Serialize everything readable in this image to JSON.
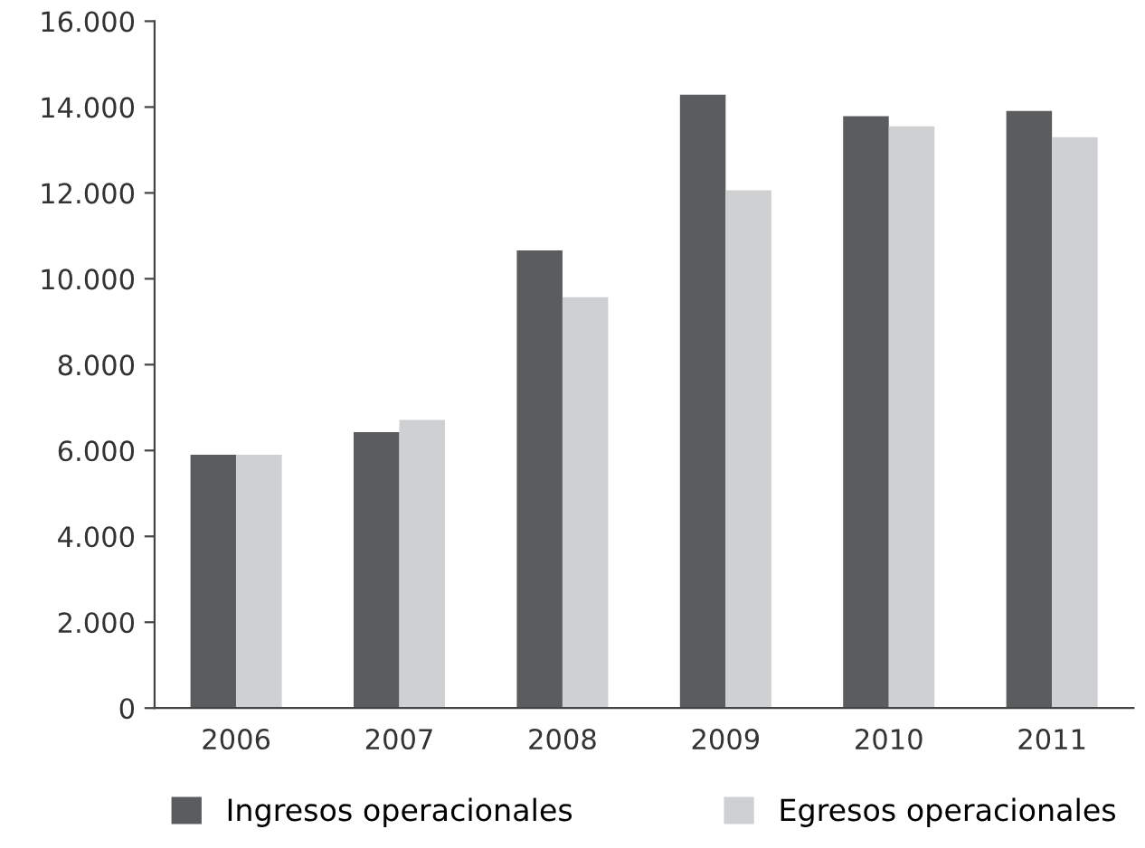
{
  "chart_data": {
    "type": "bar",
    "categories": [
      "2006",
      "2007",
      "2008",
      "2009",
      "2010",
      "2011"
    ],
    "series": [
      {
        "name": "Ingresos operacionales",
        "color": "#5b5c5e",
        "values": [
          5900,
          6430,
          10660,
          14290,
          13790,
          13910
        ]
      },
      {
        "name": "Egresos operacionales",
        "color": "#cfd0d2",
        "values": [
          5900,
          6710,
          9570,
          12060,
          13550,
          13300
        ]
      }
    ],
    "ylim": [
      0,
      16000
    ],
    "yticks": [
      {
        "value": 0,
        "label": "0"
      },
      {
        "value": 2000,
        "label": "2.000"
      },
      {
        "value": 4000,
        "label": "4.000"
      },
      {
        "value": 6000,
        "label": "6.000"
      },
      {
        "value": 8000,
        "label": "8.000"
      },
      {
        "value": 10000,
        "label": "10.000"
      },
      {
        "value": 12000,
        "label": "12.000"
      },
      {
        "value": 14000,
        "label": "14.000"
      },
      {
        "value": 16000,
        "label": "16.000"
      }
    ],
    "grid": false,
    "legend": "bottom"
  }
}
